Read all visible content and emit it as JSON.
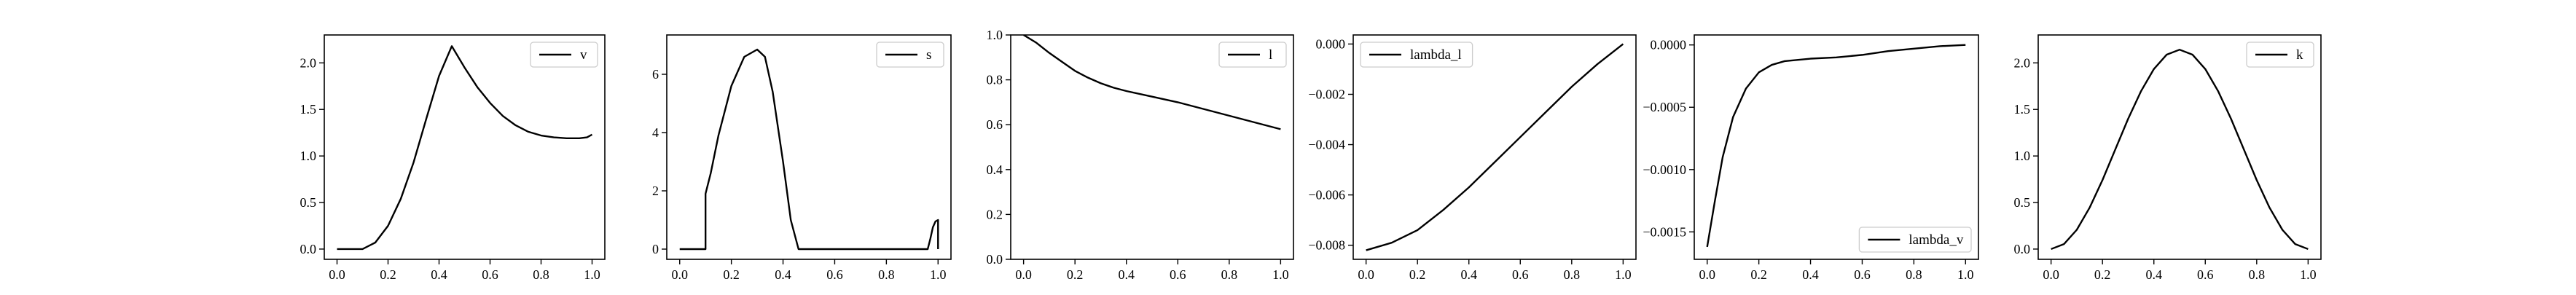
{
  "colors": {
    "line": "#000000",
    "axes": "#000000",
    "background": "#ffffff",
    "legend_border": "#cccccc"
  },
  "chart_data": [
    {
      "type": "line",
      "title": "",
      "xlabel": "",
      "ylabel": "",
      "xlim": [
        -0.05,
        1.05
      ],
      "ylim": [
        -0.11,
        2.3
      ],
      "xticks": [
        0.0,
        0.2,
        0.4,
        0.6,
        0.8,
        1.0
      ],
      "xtick_labels": [
        "0.0",
        "0.2",
        "0.4",
        "0.6",
        "0.8",
        "1.0"
      ],
      "yticks": [
        0.0,
        0.5,
        1.0,
        1.5,
        2.0
      ],
      "ytick_labels": [
        "0.0",
        "0.5",
        "1.0",
        "1.5",
        "2.0"
      ],
      "grid": false,
      "legend_position": "top-right",
      "series": [
        {
          "name": "v",
          "x": [
            0,
            0.05,
            0.1,
            0.15,
            0.2,
            0.25,
            0.3,
            0.35,
            0.4,
            0.45,
            0.5,
            0.55,
            0.6,
            0.65,
            0.7,
            0.75,
            0.8,
            0.85,
            0.9,
            0.95,
            0.98,
            1.0
          ],
          "y": [
            0.0,
            0.0,
            0.0,
            0.07,
            0.25,
            0.54,
            0.93,
            1.4,
            1.86,
            2.18,
            1.95,
            1.74,
            1.57,
            1.43,
            1.33,
            1.26,
            1.22,
            1.2,
            1.19,
            1.19,
            1.2,
            1.23
          ]
        }
      ]
    },
    {
      "type": "line",
      "title": "",
      "xlabel": "",
      "ylabel": "",
      "xlim": [
        -0.05,
        1.05
      ],
      "ylim": [
        -0.35,
        7.35
      ],
      "xticks": [
        0.0,
        0.2,
        0.4,
        0.6,
        0.8,
        1.0
      ],
      "xtick_labels": [
        "0.0",
        "0.2",
        "0.4",
        "0.6",
        "0.8",
        "1.0"
      ],
      "yticks": [
        0,
        2,
        4,
        6
      ],
      "ytick_labels": [
        "0",
        "2",
        "4",
        "6"
      ],
      "grid": false,
      "legend_position": "top-right",
      "series": [
        {
          "name": "s",
          "x": [
            0,
            0.05,
            0.1,
            0.1,
            0.12,
            0.15,
            0.2,
            0.25,
            0.3,
            0.33,
            0.36,
            0.4,
            0.43,
            0.46,
            0.5,
            0.6,
            0.7,
            0.8,
            0.9,
            0.96,
            0.97,
            0.98,
            0.99,
            1.0,
            1.0
          ],
          "y": [
            0.0,
            0.0,
            0.0,
            1.9,
            2.6,
            3.9,
            5.6,
            6.6,
            6.85,
            6.6,
            5.4,
            3.0,
            1.0,
            0.0,
            0.0,
            0.0,
            0.0,
            0.0,
            0.0,
            0.0,
            0.35,
            0.75,
            0.95,
            1.0,
            0.0
          ]
        }
      ]
    },
    {
      "type": "line",
      "title": "",
      "xlabel": "",
      "ylabel": "",
      "xlim": [
        -0.05,
        1.05
      ],
      "ylim": [
        0.0,
        1.0
      ],
      "xticks": [
        0.0,
        0.2,
        0.4,
        0.6,
        0.8,
        1.0
      ],
      "xtick_labels": [
        "0.0",
        "0.2",
        "0.4",
        "0.6",
        "0.8",
        "1.0"
      ],
      "yticks": [
        0.0,
        0.2,
        0.4,
        0.6,
        0.8,
        1.0
      ],
      "ytick_labels": [
        "0.0",
        "0.2",
        "0.4",
        "0.6",
        "0.8",
        "1.0"
      ],
      "grid": false,
      "legend_position": "top-right",
      "series": [
        {
          "name": "l",
          "x": [
            0,
            0.05,
            0.1,
            0.15,
            0.2,
            0.25,
            0.3,
            0.35,
            0.4,
            0.5,
            0.6,
            0.7,
            0.8,
            0.9,
            1.0
          ],
          "y": [
            1.0,
            0.965,
            0.92,
            0.88,
            0.84,
            0.81,
            0.785,
            0.765,
            0.75,
            0.725,
            0.7,
            0.67,
            0.64,
            0.61,
            0.58
          ]
        }
      ]
    },
    {
      "type": "line",
      "title": "",
      "xlabel": "",
      "ylabel": "",
      "xlim": [
        -0.05,
        1.05
      ],
      "ylim": [
        -0.00856,
        0.00036
      ],
      "xticks": [
        0.0,
        0.2,
        0.4,
        0.6,
        0.8,
        1.0
      ],
      "xtick_labels": [
        "0.0",
        "0.2",
        "0.4",
        "0.6",
        "0.8",
        "1.0"
      ],
      "yticks": [
        -0.008,
        -0.006,
        -0.004,
        -0.002,
        0.0
      ],
      "ytick_labels": [
        "−0.008",
        "−0.006",
        "−0.004",
        "−0.002",
        "0.000"
      ],
      "grid": false,
      "legend_position": "top-left",
      "series": [
        {
          "name": "lambda_l",
          "x": [
            0,
            0.1,
            0.2,
            0.3,
            0.4,
            0.5,
            0.6,
            0.7,
            0.8,
            0.9,
            1.0
          ],
          "y": [
            -0.0082,
            -0.0079,
            -0.0074,
            -0.0066,
            -0.0057,
            -0.0047,
            -0.0037,
            -0.0027,
            -0.0017,
            -0.0008,
            0.0
          ]
        }
      ]
    },
    {
      "type": "line",
      "title": "",
      "xlabel": "",
      "ylabel": "",
      "xlim": [
        -0.05,
        1.05
      ],
      "ylim": [
        -0.00172,
        8e-05
      ],
      "xticks": [
        0.0,
        0.2,
        0.4,
        0.6,
        0.8,
        1.0
      ],
      "xtick_labels": [
        "0.0",
        "0.2",
        "0.4",
        "0.6",
        "0.8",
        "1.0"
      ],
      "yticks": [
        -0.0015,
        -0.001,
        -0.0005,
        0.0
      ],
      "ytick_labels": [
        "−0.0015",
        "−0.0010",
        "−0.0005",
        "0.0000"
      ],
      "grid": false,
      "legend_position": "bottom-right",
      "series": [
        {
          "name": "lambda_v",
          "x": [
            0,
            0.03,
            0.06,
            0.1,
            0.15,
            0.2,
            0.25,
            0.3,
            0.4,
            0.5,
            0.6,
            0.7,
            0.8,
            0.9,
            1.0
          ],
          "y": [
            -0.00162,
            -0.00125,
            -0.0009,
            -0.00058,
            -0.00035,
            -0.00022,
            -0.00016,
            -0.00013,
            -0.00011,
            -0.0001,
            -8e-05,
            -5e-05,
            -3e-05,
            -1e-05,
            0.0
          ]
        }
      ]
    },
    {
      "type": "line",
      "title": "",
      "xlabel": "",
      "ylabel": "",
      "xlim": [
        -0.05,
        1.05
      ],
      "ylim": [
        -0.11,
        2.3
      ],
      "xticks": [
        0.0,
        0.2,
        0.4,
        0.6,
        0.8,
        1.0
      ],
      "xtick_labels": [
        "0.0",
        "0.2",
        "0.4",
        "0.6",
        "0.8",
        "1.0"
      ],
      "yticks": [
        0.0,
        0.5,
        1.0,
        1.5,
        2.0
      ],
      "ytick_labels": [
        "0.0",
        "0.5",
        "1.0",
        "1.5",
        "2.0"
      ],
      "grid": false,
      "legend_position": "top-right",
      "series": [
        {
          "name": "k",
          "x": [
            0,
            0.05,
            0.1,
            0.15,
            0.2,
            0.25,
            0.3,
            0.35,
            0.4,
            0.45,
            0.5,
            0.55,
            0.6,
            0.65,
            0.7,
            0.75,
            0.8,
            0.85,
            0.9,
            0.95,
            1.0
          ],
          "y": [
            0.0,
            0.053,
            0.207,
            0.445,
            0.741,
            1.071,
            1.4,
            1.696,
            1.934,
            2.089,
            2.142,
            2.089,
            1.934,
            1.696,
            1.4,
            1.071,
            0.741,
            0.445,
            0.207,
            0.053,
            0.0
          ]
        }
      ]
    }
  ]
}
